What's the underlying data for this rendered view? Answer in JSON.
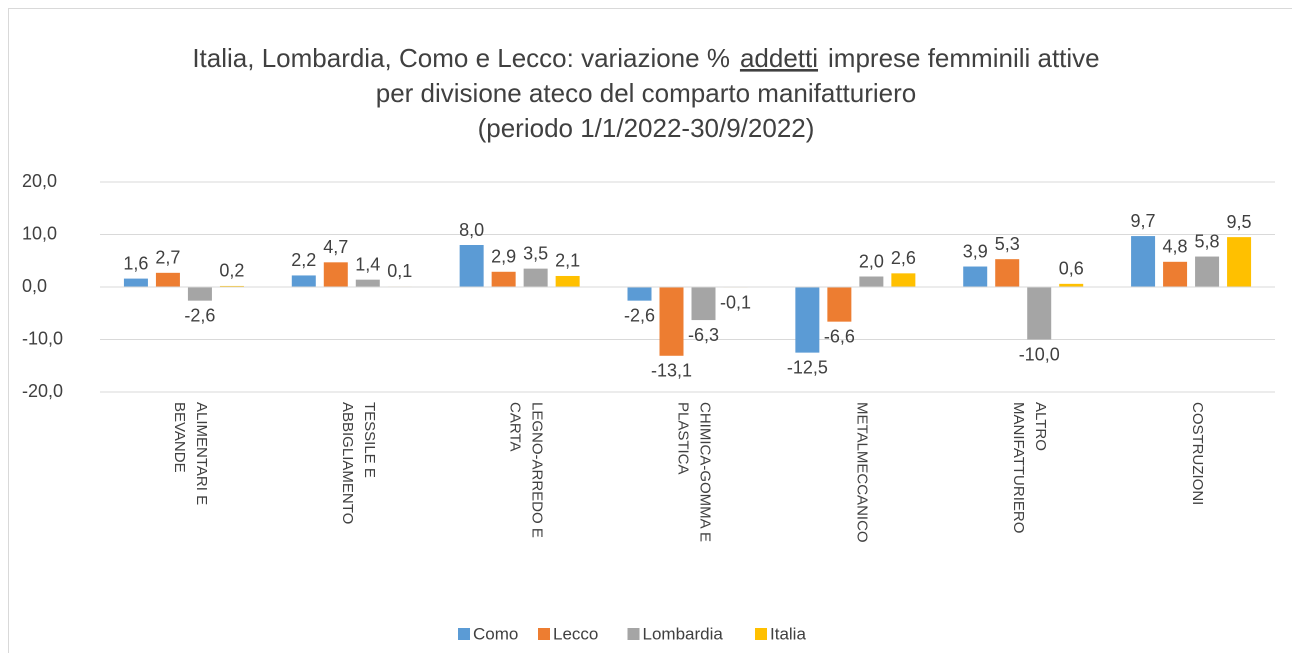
{
  "chart_data": {
    "type": "bar",
    "title": [
      [
        "Italia, Lombardia, Como e Lecco: variazione %",
        "addetti",
        "imprese femminili attive"
      ],
      "per divisione ateco del comparto manifatturiero",
      "(periodo 1/1/2022-30/9/2022)"
    ],
    "categories": [
      [
        "ALIMENTARI E",
        "BEVANDE"
      ],
      [
        "TESSILE E",
        "ABBIGLIAMENTO"
      ],
      [
        "LEGNO-ARREDO E",
        "CARTA"
      ],
      [
        "CHIMICA-GOMMA E",
        "PLASTICA"
      ],
      [
        "METALMECCANICO"
      ],
      [
        "ALTRO",
        "MANIFATTURIERO"
      ],
      [
        "COSTRUZIONI"
      ]
    ],
    "series": [
      {
        "name": "Como",
        "color": "#5b9bd5",
        "values": [
          1.6,
          2.2,
          8.0,
          -2.6,
          -12.5,
          3.9,
          9.7
        ],
        "value_labels": [
          "1,6",
          "2,2",
          "8,0",
          "-2,6",
          "-12,5",
          "3,9",
          "9,7"
        ]
      },
      {
        "name": "Lecco",
        "color": "#ed7d31",
        "values": [
          2.7,
          4.7,
          2.9,
          -13.1,
          -6.6,
          5.3,
          4.8
        ],
        "value_labels": [
          "2,7",
          "4,7",
          "2,9",
          "-13,1",
          "-6,6",
          "5,3",
          "4,8"
        ]
      },
      {
        "name": "Lombardia",
        "color": "#a5a5a5",
        "values": [
          -2.6,
          1.4,
          3.5,
          -6.3,
          2.0,
          -10.0,
          5.8
        ],
        "value_labels": [
          "-2,6",
          "1,4",
          "3,5",
          "-6,3",
          "2,0",
          "-10,0",
          "5,8"
        ]
      },
      {
        "name": "Italia",
        "color": "#ffc000",
        "values": [
          0.2,
          0.1,
          2.1,
          -0.1,
          2.6,
          0.6,
          9.5
        ],
        "value_labels": [
          "0,2",
          "0,1",
          "2,1",
          "-0,1",
          "2,6",
          "0,6",
          "9,5"
        ]
      }
    ],
    "ylim": [
      -20,
      20
    ],
    "yticks": [
      {
        "value": -20,
        "label": "-20,0"
      },
      {
        "value": -10,
        "label": "-10,0"
      },
      {
        "value": 0,
        "label": "0,0"
      },
      {
        "value": 10,
        "label": "10,0"
      },
      {
        "value": 20,
        "label": "20,0"
      }
    ],
    "grid": true,
    "legend": "bottom"
  }
}
